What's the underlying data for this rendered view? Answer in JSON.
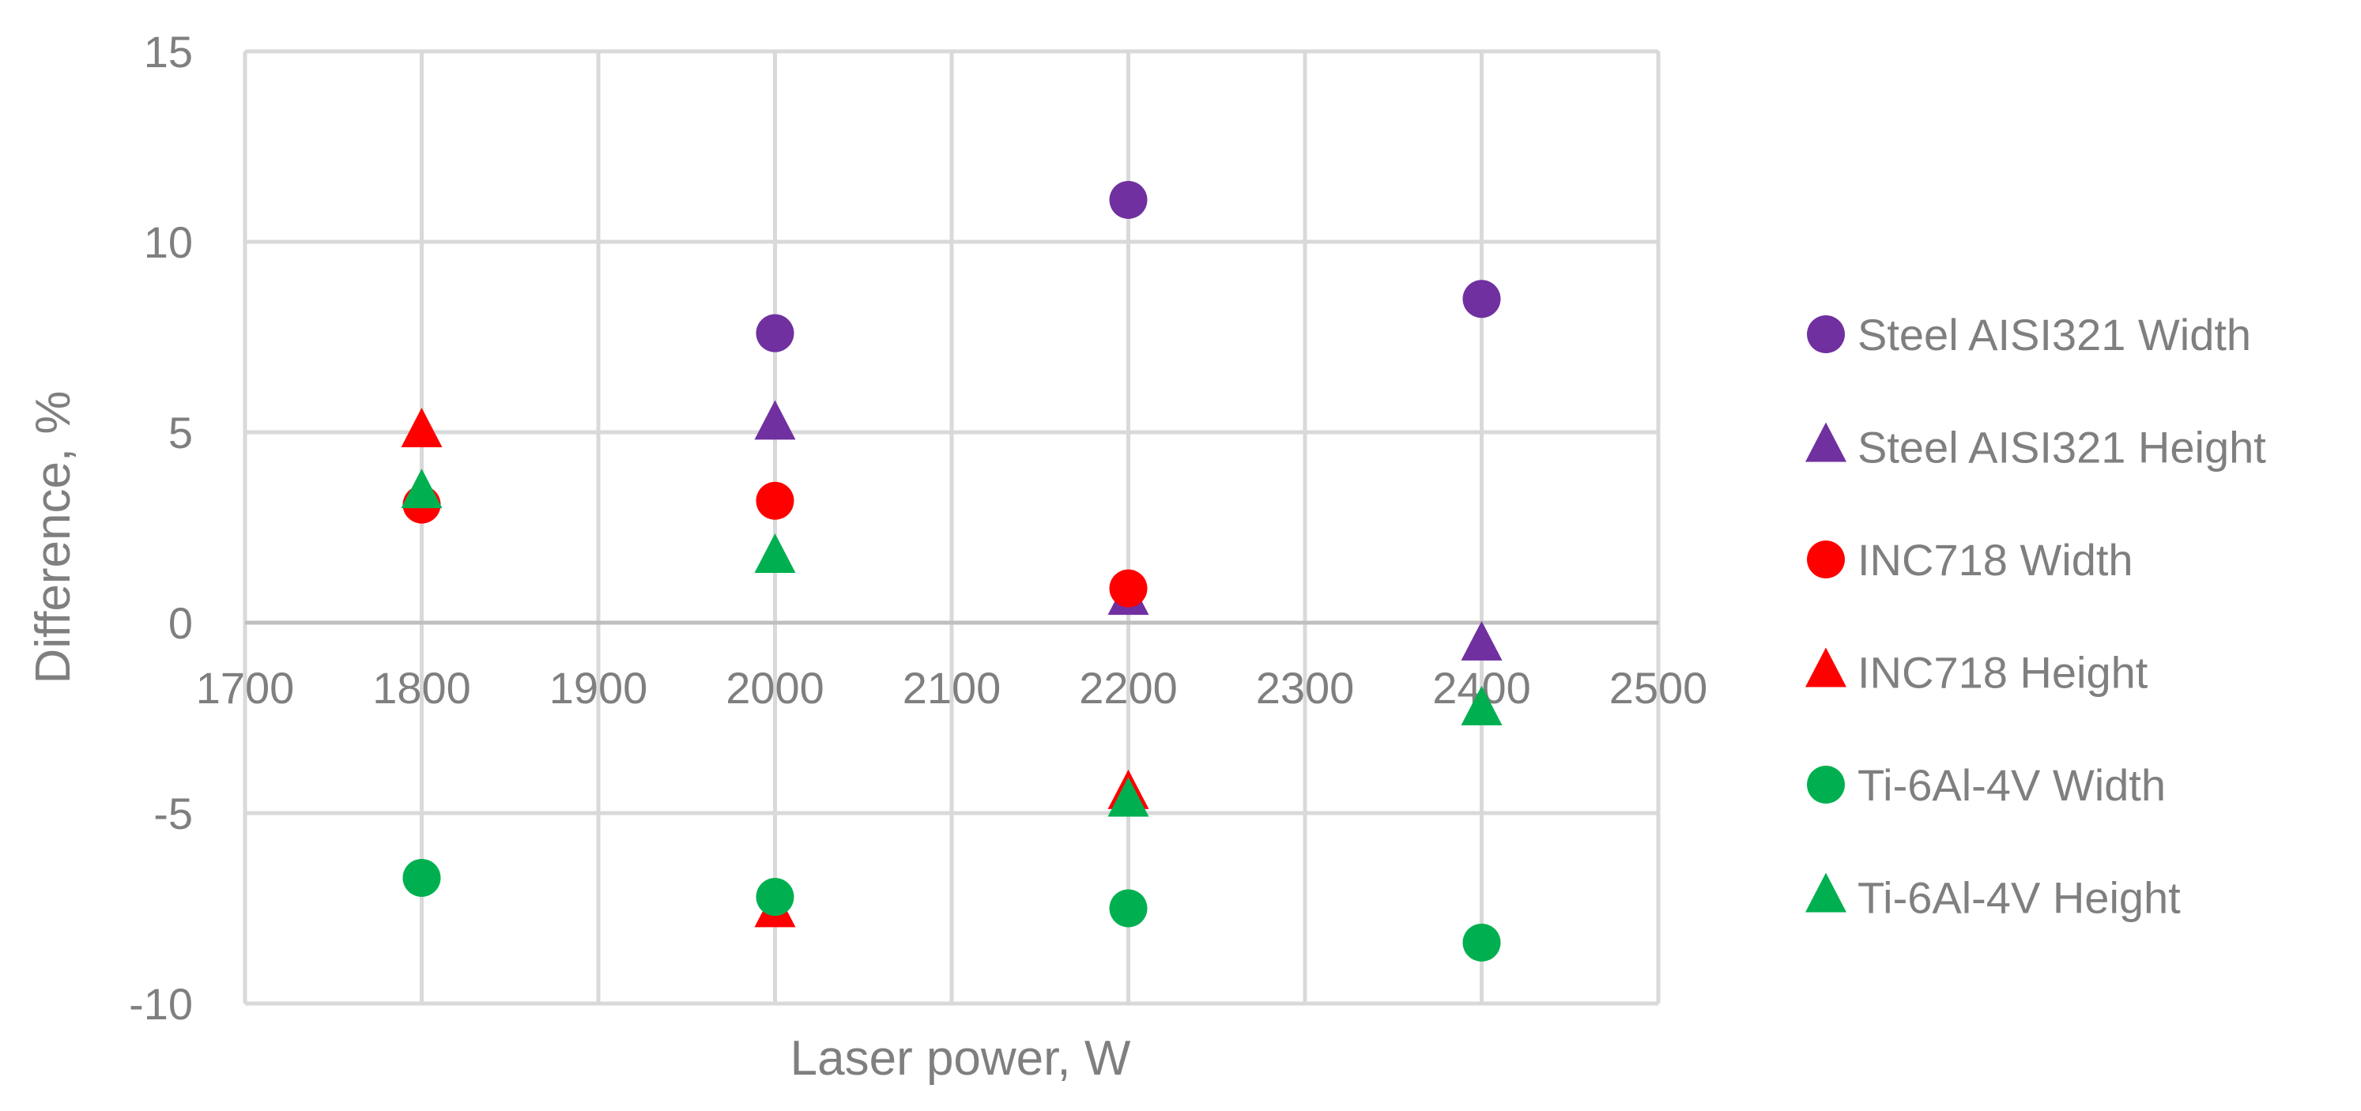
{
  "chart_data": {
    "type": "scatter",
    "title": "",
    "xlabel": "Laser power, W",
    "ylabel": "Difference, %",
    "xlim": [
      1700,
      2500
    ],
    "ylim": [
      -10,
      15
    ],
    "x_ticks": [
      1700,
      1800,
      1900,
      2000,
      2100,
      2200,
      2300,
      2400,
      2500
    ],
    "y_ticks": [
      -10,
      -5,
      0,
      5,
      10,
      15
    ],
    "grid": true,
    "legend_position": "right",
    "series": [
      {
        "name": "Steel AISI321 Width",
        "marker": "circle",
        "color": "#7030a0",
        "x": [
          2000,
          2200,
          2400
        ],
        "y": [
          7.6,
          11.1,
          8.5
        ]
      },
      {
        "name": "Steel AISI321 Height",
        "marker": "triangle",
        "color": "#7030a0",
        "x": [
          2000,
          2200,
          2400
        ],
        "y": [
          5.2,
          0.6,
          -0.6
        ]
      },
      {
        "name": "INC718 Width",
        "marker": "circle",
        "color": "#ff0000",
        "x": [
          1800,
          2000,
          2200
        ],
        "y": [
          3.1,
          3.2,
          0.9
        ]
      },
      {
        "name": "INC718 Height",
        "marker": "triangle",
        "color": "#ff0000",
        "x": [
          1800,
          2000,
          2200
        ],
        "y": [
          5.0,
          -7.6,
          -4.5
        ]
      },
      {
        "name": "Ti-6Al-4V Width",
        "marker": "circle",
        "color": "#00b050",
        "x": [
          1800,
          2000,
          2200,
          2400
        ],
        "y": [
          -6.7,
          -7.2,
          -7.5,
          -8.4
        ]
      },
      {
        "name": "Ti-6Al-4V Height",
        "marker": "triangle",
        "color": "#00b050",
        "x": [
          1800,
          2000,
          2200,
          2400
        ],
        "y": [
          3.4,
          1.7,
          -4.7,
          -2.3
        ]
      }
    ]
  }
}
